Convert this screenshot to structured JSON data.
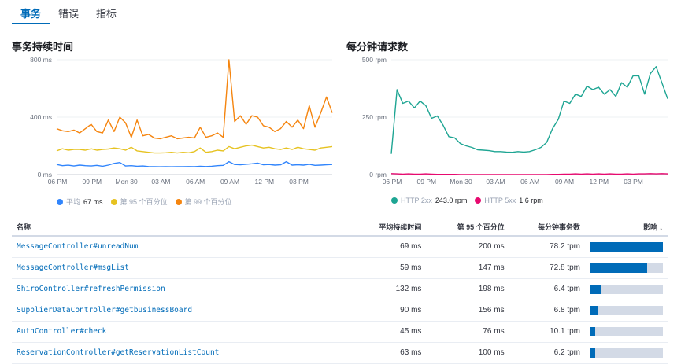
{
  "tabs": [
    {
      "label": "事务",
      "active": true
    },
    {
      "label": "错误",
      "active": false
    },
    {
      "label": "指标",
      "active": false
    }
  ],
  "chart_data": [
    {
      "type": "line",
      "title": "事务持续时间",
      "ylim": [
        0,
        800
      ],
      "yticks": [
        "800 ms",
        "400 ms",
        "0 ms"
      ],
      "ytick_values": [
        800,
        400,
        0
      ],
      "xticks": [
        "06 PM",
        "09 PM",
        "Mon 30",
        "03 AM",
        "06 AM",
        "09 AM",
        "12 PM",
        "03 PM"
      ],
      "grid": true,
      "legend_placement": "bottom",
      "series": [
        {
          "name": "平均",
          "summary": "67 ms",
          "color": "#3185fc",
          "values": [
            70,
            62,
            65,
            60,
            66,
            62,
            60,
            64,
            58,
            66,
            78,
            84,
            60,
            62,
            58,
            60,
            56,
            55,
            54,
            55,
            54,
            55,
            55,
            56,
            55,
            58,
            56,
            58,
            62,
            64,
            90,
            70,
            68,
            72,
            75,
            80,
            68,
            70,
            66,
            68,
            90,
            66,
            68,
            66,
            72,
            64,
            66,
            68,
            70
          ]
        },
        {
          "name": "第 95 个百分位",
          "color": "#e6c220",
          "values": [
            165,
            180,
            170,
            175,
            175,
            170,
            180,
            170,
            175,
            178,
            185,
            180,
            170,
            190,
            165,
            160,
            155,
            150,
            150,
            152,
            155,
            150,
            155,
            152,
            160,
            185,
            155,
            160,
            170,
            165,
            195,
            180,
            190,
            200,
            205,
            195,
            185,
            190,
            180,
            175,
            185,
            175,
            190,
            180,
            175,
            170,
            185,
            190,
            195
          ]
        },
        {
          "name": "第 99 个百分位",
          "color": "#f5850f",
          "values": [
            320,
            305,
            300,
            310,
            290,
            320,
            350,
            300,
            290,
            380,
            300,
            400,
            360,
            260,
            380,
            270,
            280,
            255,
            250,
            260,
            270,
            250,
            255,
            260,
            255,
            330,
            260,
            270,
            290,
            260,
            800,
            370,
            410,
            350,
            410,
            400,
            340,
            330,
            300,
            320,
            370,
            330,
            380,
            320,
            480,
            330,
            430,
            540,
            430
          ]
        }
      ]
    },
    {
      "type": "line",
      "title": "每分钟请求数",
      "ylim": [
        0,
        500
      ],
      "yticks": [
        "500 rpm",
        "250 rpm",
        "0 rpm"
      ],
      "ytick_values": [
        500,
        250,
        0
      ],
      "xticks": [
        "06 PM",
        "09 PM",
        "Mon 30",
        "03 AM",
        "06 AM",
        "09 AM",
        "12 PM",
        "03 PM"
      ],
      "grid": true,
      "legend_placement": "bottom",
      "series": [
        {
          "name": "HTTP 2xx",
          "summary": "243.0 rpm",
          "color": "#1ea593",
          "values": [
            90,
            370,
            310,
            320,
            290,
            320,
            300,
            245,
            255,
            215,
            165,
            160,
            135,
            125,
            118,
            108,
            106,
            104,
            100,
            100,
            98,
            97,
            100,
            98,
            100,
            108,
            118,
            140,
            200,
            240,
            320,
            310,
            350,
            340,
            385,
            370,
            380,
            350,
            370,
            340,
            400,
            380,
            430,
            430,
            350,
            440,
            470,
            400,
            330
          ]
        },
        {
          "name": "HTTP 5xx",
          "summary": "1.6 rpm",
          "color": "#e7096f",
          "values": [
            4,
            3,
            2,
            3,
            2,
            2,
            3,
            2,
            1,
            1,
            1,
            1,
            0,
            0,
            0,
            0,
            0,
            0,
            0,
            0,
            0,
            0,
            0,
            0,
            0,
            0,
            0,
            0,
            1,
            1,
            2,
            2,
            3,
            2,
            3,
            2,
            3,
            2,
            3,
            2,
            2,
            3,
            2,
            3,
            3,
            4,
            3,
            4,
            3
          ]
        }
      ]
    }
  ],
  "table": {
    "headers": [
      "名称",
      "平均持续时间",
      "第 95 个百分位",
      "每分钟事务数",
      "影响 ↓"
    ],
    "rows": [
      {
        "name": "MessageController#unreadNum",
        "avg": "69 ms",
        "p95": "200 ms",
        "tpm": "78.2 tpm",
        "impact": 100
      },
      {
        "name": "MessageController#msgList",
        "avg": "59 ms",
        "p95": "147 ms",
        "tpm": "72.8 tpm",
        "impact": 79
      },
      {
        "name": "ShiroController#refreshPermission",
        "avg": "132 ms",
        "p95": "198 ms",
        "tpm": "6.4 tpm",
        "impact": 16
      },
      {
        "name": "SupplierDataController#getbusinessBoard",
        "avg": "90 ms",
        "p95": "156 ms",
        "tpm": "6.8 tpm",
        "impact": 12
      },
      {
        "name": "AuthController#check",
        "avg": "45 ms",
        "p95": "76 ms",
        "tpm": "10.1 tpm",
        "impact": 8
      },
      {
        "name": "ReservationController#getReservationListCount",
        "avg": "63 ms",
        "p95": "100 ms",
        "tpm": "6.2 tpm",
        "impact": 7
      }
    ]
  }
}
